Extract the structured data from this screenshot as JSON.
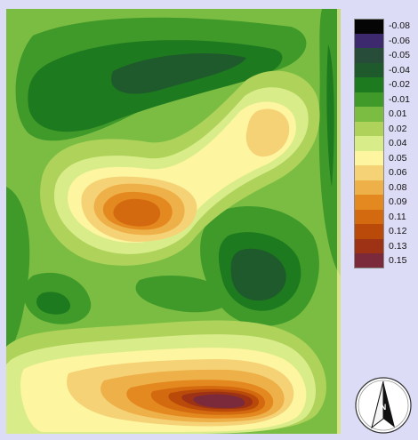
{
  "legend": {
    "entries": [
      {
        "label": "-0.08",
        "color": "#050505"
      },
      {
        "label": "-0.06",
        "color": "#3d2a6e"
      },
      {
        "label": "-0.05",
        "color": "#274c3a"
      },
      {
        "label": "-0.04",
        "color": "#1e5a2c"
      },
      {
        "label": "-0.02",
        "color": "#1e7a1e"
      },
      {
        "label": "-0.01",
        "color": "#3f9a2a"
      },
      {
        "label": "0.01",
        "color": "#7bbd42"
      },
      {
        "label": "0.02",
        "color": "#aed25a"
      },
      {
        "label": "0.04",
        "color": "#d9ec8a"
      },
      {
        "label": "0.05",
        "color": "#fdf5a0"
      },
      {
        "label": "0.06",
        "color": "#f6d276"
      },
      {
        "label": "0.08",
        "color": "#eeb048"
      },
      {
        "label": "0.09",
        "color": "#e4891f"
      },
      {
        "label": "0.11",
        "color": "#d46a0f"
      },
      {
        "label": "0.12",
        "color": "#ba4a0a"
      },
      {
        "label": "0.13",
        "color": "#9e3214"
      },
      {
        "label": "0.15",
        "color": "#7a2a3a"
      }
    ]
  },
  "north_arrow": {
    "icon": "north-arrow-icon",
    "letter": "N"
  }
}
